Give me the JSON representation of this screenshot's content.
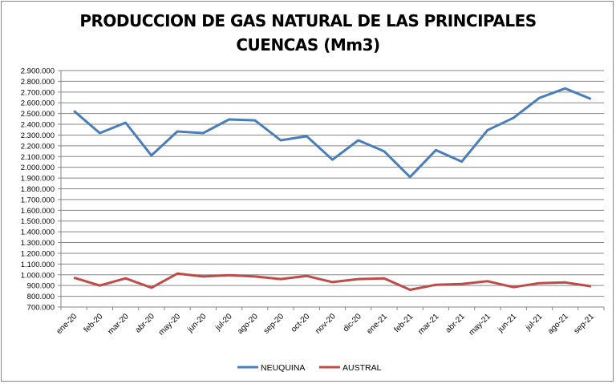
{
  "chart_data": {
    "type": "line",
    "title_line1": "PRODUCCION DE GAS NATURAL DE LAS PRINCIPALES",
    "title_line2": "CUENCAS (Mm3)",
    "xlabel": "",
    "ylabel": "",
    "ylim": [
      700000,
      2900000
    ],
    "ytick_step": 100000,
    "grid": true,
    "legend_position": "bottom",
    "categories": [
      "ene-20",
      "feb-20",
      "mar-20",
      "abr-20",
      "may-20",
      "jun-20",
      "jul-20",
      "ago-20",
      "sep-20",
      "oct-20",
      "nov-20",
      "dic-20",
      "ene-21",
      "feb-21",
      "mar-21",
      "abr-21",
      "may-21",
      "jun-21",
      "jul-21",
      "ago-21",
      "sep-21"
    ],
    "series": [
      {
        "name": "NEUQUINA",
        "color": "#4a7ebb",
        "values": [
          2525000,
          2318000,
          2415000,
          2110000,
          2333000,
          2318000,
          2445000,
          2437000,
          2251000,
          2289000,
          2071000,
          2251000,
          2148000,
          1910000,
          2160000,
          2053000,
          2346000,
          2460000,
          2645000,
          2734000,
          2635000
        ]
      },
      {
        "name": "AUSTRAL",
        "color": "#be4b48",
        "values": [
          974000,
          900000,
          967000,
          880000,
          1011000,
          984000,
          997000,
          984000,
          960000,
          989000,
          932000,
          960000,
          967000,
          860000,
          907000,
          915000,
          940000,
          885000,
          922000,
          929000,
          893000
        ]
      }
    ]
  }
}
